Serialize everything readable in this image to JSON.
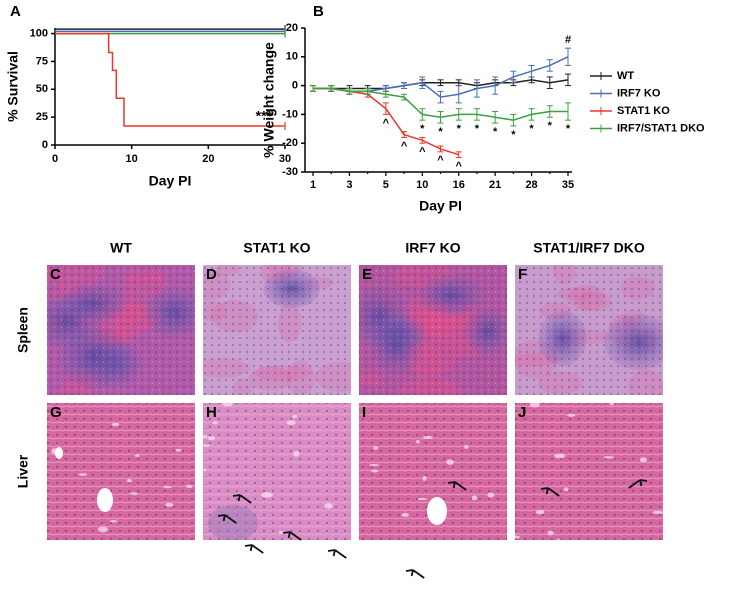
{
  "chart_data": [
    {
      "type": "line",
      "panel": "A",
      "ylabel": "% Survival",
      "xlabel": "Day PI",
      "step": true,
      "xlim": [
        0,
        30
      ],
      "xticks": [
        0,
        10,
        20,
        30
      ],
      "ylim": [
        0,
        105
      ],
      "yticks": [
        0,
        25,
        50,
        75,
        100
      ],
      "series": [
        {
          "color": "#222222",
          "x": [
            0,
            30
          ],
          "values": [
            104,
            104
          ]
        },
        {
          "color": "#4a6fb5",
          "x": [
            0,
            30
          ],
          "values": [
            102,
            102
          ]
        },
        {
          "color": "#3aa040",
          "x": [
            0,
            30
          ],
          "values": [
            100,
            100
          ]
        },
        {
          "color": "#e8382b",
          "x": [
            0,
            7,
            7.5,
            8,
            9,
            30
          ],
          "values": [
            100,
            83,
            67,
            42,
            17,
            17
          ]
        }
      ],
      "annotation": "***"
    },
    {
      "type": "line",
      "panel": "B",
      "ylabel": "% Weight change",
      "xlabel": "Day PI",
      "legend": "right",
      "categories": [
        "1",
        null,
        "3",
        null,
        "5",
        null,
        "10",
        null,
        "16",
        null,
        "21",
        null,
        "28",
        null,
        "35"
      ],
      "ylim": [
        -30,
        20
      ],
      "yticks": [
        -30,
        -20,
        -10,
        0,
        10,
        20
      ],
      "series": [
        {
          "name": "WT",
          "color": "#222222",
          "values": [
            -1,
            -1,
            -1,
            -1,
            -1,
            0,
            1,
            1,
            1,
            0,
            1,
            1,
            2,
            1,
            2
          ],
          "errors": [
            1,
            1,
            1,
            1,
            1,
            1,
            1,
            1,
            1,
            1,
            1,
            1,
            1,
            2,
            2
          ]
        },
        {
          "name": "IRF7 KO",
          "color": "#4a6fb5",
          "values": [
            -1,
            -1,
            -2,
            -2,
            -1,
            0,
            1,
            -4,
            -3,
            -1,
            0,
            3,
            5,
            7,
            10
          ],
          "errors": [
            1,
            1,
            1,
            1,
            1,
            1,
            2,
            2,
            3,
            3,
            3,
            2,
            2,
            2,
            3
          ],
          "significance": [
            null,
            null,
            null,
            null,
            null,
            null,
            null,
            null,
            null,
            null,
            null,
            null,
            null,
            null,
            "#"
          ]
        },
        {
          "name": "STAT1 KO",
          "color": "#e8382b",
          "values": [
            -1,
            -1,
            -2,
            -3,
            -8,
            -17,
            -19,
            -22,
            -24,
            null,
            null,
            null,
            null,
            null,
            null
          ],
          "errors": [
            1,
            1,
            1,
            1,
            2,
            1,
            1,
            1,
            1,
            null,
            null,
            null,
            null,
            null,
            null
          ],
          "significance": [
            null,
            null,
            null,
            null,
            "^",
            "^",
            "^",
            "^",
            "^",
            null,
            null,
            null,
            null,
            null,
            null
          ]
        },
        {
          "name": "IRF7/STAT1 DKO",
          "color": "#3aa040",
          "values": [
            -1,
            -1,
            -2,
            -2,
            -3,
            -4,
            -10,
            -11,
            -10,
            -10,
            -11,
            -12,
            -10,
            -9,
            -9
          ],
          "errors": [
            1,
            1,
            1,
            1,
            1,
            1,
            2,
            2,
            2,
            2,
            2,
            2,
            2,
            2,
            3
          ],
          "significance": [
            null,
            null,
            null,
            null,
            null,
            null,
            "*",
            "*",
            "*",
            "*",
            "*",
            "*",
            "*",
            "*",
            "*"
          ]
        }
      ]
    }
  ],
  "histology": {
    "columns": [
      "WT",
      "STAT1 KO",
      "IRF7 KO",
      "STAT1/IRF7 DKO"
    ],
    "rows": [
      "Spleen",
      "Liver"
    ],
    "letters": [
      [
        "C",
        "D",
        "E",
        "F"
      ],
      [
        "G",
        "H",
        "I",
        "J"
      ]
    ]
  }
}
